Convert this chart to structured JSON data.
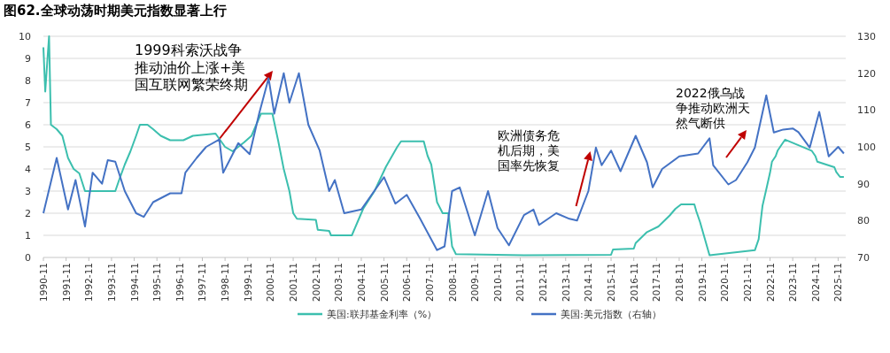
{
  "chart_data": {
    "type": "line",
    "title": "图62.全球动荡时期美元指数显著上行",
    "xlim": [
      "1990-11",
      "2026-03"
    ],
    "xticks": [
      "1990-11",
      "1991-11",
      "1992-11",
      "1993-11",
      "1994-11",
      "1995-11",
      "1996-11",
      "1997-11",
      "1998-11",
      "1999-11",
      "2000-11",
      "2001-11",
      "2002-11",
      "2003-11",
      "2004-11",
      "2005-11",
      "2006-11",
      "2007-11",
      "2008-11",
      "2009-11",
      "2010-11",
      "2011-11",
      "2012-11",
      "2013-11",
      "2014-11",
      "2015-11",
      "2016-11",
      "2017-11",
      "2018-11",
      "2019-11",
      "2020-11",
      "2021-11",
      "2022-11",
      "2023-11",
      "2024-11",
      "2025-11"
    ],
    "ylim": [
      0,
      10
    ],
    "yticks": [
      0,
      1,
      2,
      3,
      4,
      5,
      6,
      7,
      8,
      9,
      10
    ],
    "y2lim": [
      70,
      130
    ],
    "y2ticks": [
      70,
      80,
      90,
      100,
      110,
      120,
      130
    ],
    "grid": "y",
    "legend": "bottom",
    "marker": "none",
    "annotations": [
      "1999科索沃战争推动油价上涨+美国互联网繁荣终期",
      {
        "text": "欧洲债务危机后期，美国率先恢复",
        "x": "2014-12",
        "y": 4.8
      },
      "2022俄乌战争推动欧洲天然气断供"
    ],
    "series": [
      {
        "name": "美国:联邦基金利率（%）",
        "color": "#3cbfae",
        "x": [
          "1990-11",
          "1990-12",
          "1991-01",
          "1991-02",
          "1991-03",
          "1991-06",
          "1991-09",
          "1991-12",
          "1992-03",
          "1992-06",
          "1992-09",
          "1993-01",
          "1993-06",
          "1994-01",
          "1994-03",
          "1994-06",
          "1994-09",
          "1994-12",
          "1995-02",
          "1995-06",
          "1995-09",
          "1996-01",
          "1996-06",
          "1997-01",
          "1997-06",
          "1998-06",
          "1998-11",
          "1999-03",
          "1999-09",
          "2000-01",
          "2000-06",
          "2000-12",
          "2001-03",
          "2001-06",
          "2001-09",
          "2001-11",
          "2002-01",
          "2002-11",
          "2002-12",
          "2003-06",
          "2003-07",
          "2004-06",
          "2004-09",
          "2004-12",
          "2005-06",
          "2005-12",
          "2006-06",
          "2006-08",
          "2007-08",
          "2007-10",
          "2007-12",
          "2008-03",
          "2008-06",
          "2008-09",
          "2008-11",
          "2009-01",
          "2012-01",
          "2015-11",
          "2015-12",
          "2016-11",
          "2016-12",
          "2017-03",
          "2017-06",
          "2017-12",
          "2018-03",
          "2018-06",
          "2018-09",
          "2018-12",
          "2019-07",
          "2019-08",
          "2019-10",
          "2020-03",
          "2022-03",
          "2022-05",
          "2022-06",
          "2022-07",
          "2022-09",
          "2022-11",
          "2022-12",
          "2023-02",
          "2023-03",
          "2023-05",
          "2023-07",
          "2024-09",
          "2024-11",
          "2024-12",
          "2025-09",
          "2025-10",
          "2025-12",
          "2026-02"
        ],
        "values": [
          9.5,
          7.5,
          8.8,
          10,
          6.0,
          5.8,
          5.5,
          4.5,
          4.0,
          3.8,
          3.0,
          3.0,
          3.0,
          3.0,
          3.5,
          4.2,
          4.8,
          5.5,
          6.0,
          6.0,
          5.8,
          5.5,
          5.3,
          5.3,
          5.5,
          5.6,
          5.0,
          4.8,
          5.2,
          5.5,
          6.5,
          6.5,
          5.3,
          4.0,
          3.0,
          2.0,
          1.75,
          1.7,
          1.25,
          1.2,
          1.0,
          1.0,
          1.6,
          2.2,
          3.0,
          4.1,
          5.0,
          5.25,
          5.25,
          4.6,
          4.2,
          2.5,
          2.0,
          2.0,
          0.5,
          0.15,
          0.1,
          0.12,
          0.36,
          0.4,
          0.65,
          0.9,
          1.15,
          1.4,
          1.65,
          1.9,
          2.2,
          2.4,
          2.4,
          2.1,
          1.6,
          0.1,
          0.33,
          0.83,
          1.58,
          2.33,
          3.08,
          3.83,
          4.33,
          4.58,
          4.83,
          5.08,
          5.33,
          4.83,
          4.58,
          4.33,
          4.08,
          3.87,
          3.64,
          3.64
        ]
      },
      {
        "name": "美国:美元指数（右轴）",
        "color": "#4472c4",
        "axis": "y2",
        "x": [
          "1990-11",
          "1991-06",
          "1991-12",
          "1992-04",
          "1992-09",
          "1993-01",
          "1993-06",
          "1993-09",
          "1994-01",
          "1994-06",
          "1994-12",
          "1995-04",
          "1995-09",
          "1996-06",
          "1996-12",
          "1997-02",
          "1997-08",
          "1998-01",
          "1998-08",
          "1998-10",
          "1999-01",
          "1999-06",
          "1999-12",
          "2000-05",
          "2000-10",
          "2001-01",
          "2001-06",
          "2001-09",
          "2002-02",
          "2002-07",
          "2003-01",
          "2003-06",
          "2003-09",
          "2004-02",
          "2004-11",
          "2005-11",
          "2006-05",
          "2006-11",
          "2007-06",
          "2008-03",
          "2008-07",
          "2008-11",
          "2009-03",
          "2009-11",
          "2010-06",
          "2010-11",
          "2011-05",
          "2012-01",
          "2012-06",
          "2012-09",
          "2013-06",
          "2014-01",
          "2014-05",
          "2014-11",
          "2015-03",
          "2015-06",
          "2015-11",
          "2016-04",
          "2016-12",
          "2017-06",
          "2017-09",
          "2018-02",
          "2018-11",
          "2019-09",
          "2020-03",
          "2020-05",
          "2021-01",
          "2021-05",
          "2021-11",
          "2022-03",
          "2022-09",
          "2023-01",
          "2023-06",
          "2023-11",
          "2024-02",
          "2024-08",
          "2025-01",
          "2025-06",
          "2025-11",
          "2026-02"
        ],
        "values": [
          82,
          97,
          83,
          91,
          78.4,
          93,
          90,
          96.4,
          96,
          88,
          82,
          81,
          85,
          87.4,
          87.4,
          93,
          97,
          100,
          102,
          93,
          96,
          101,
          98,
          109,
          118.6,
          109,
          120,
          112,
          120,
          106,
          99,
          88,
          91,
          82,
          83,
          91.8,
          84.6,
          87,
          80.6,
          72,
          73,
          88,
          89,
          76,
          88,
          78,
          73.3,
          81.5,
          83,
          78.8,
          82,
          80.5,
          80,
          88,
          99.8,
          95,
          99,
          93.4,
          103,
          95.8,
          89,
          94,
          97.4,
          98.2,
          102.3,
          95,
          89.8,
          91,
          95.8,
          99.8,
          114,
          103.9,
          104.7,
          105,
          104,
          99.8,
          109.5,
          97.4,
          100,
          98.2
        ]
      }
    ]
  }
}
